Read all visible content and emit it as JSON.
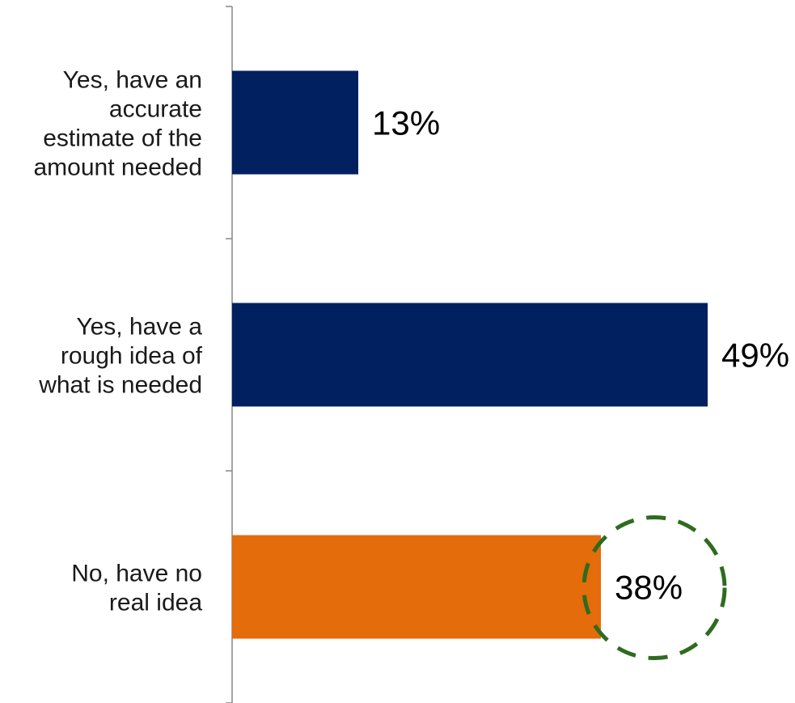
{
  "chart_data": {
    "type": "bar",
    "orientation": "horizontal",
    "categories": [
      [
        "Yes, have an",
        "accurate",
        "estimate of the",
        "amount needed"
      ],
      [
        "Yes, have a",
        "rough idea of",
        "what is needed"
      ],
      [
        "No, have no",
        "real idea"
      ]
    ],
    "values": [
      13,
      49,
      38
    ],
    "value_labels": [
      "13%",
      "49%",
      "38%"
    ],
    "bar_colors": [
      "#002060",
      "#002060",
      "#E46C0A"
    ],
    "xlim": [
      0,
      50
    ],
    "grid": false,
    "highlight": {
      "category_index": 2,
      "shape": "dashed-circle",
      "color": "#2E6B1F"
    }
  }
}
